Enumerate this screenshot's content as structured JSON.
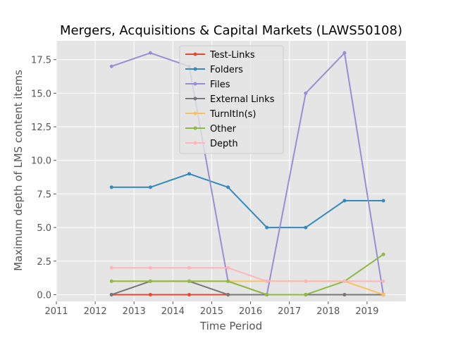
{
  "chart_data": {
    "type": "line",
    "title": "Mergers, Acquisitions & Capital Markets (LAWS50108)",
    "xlabel": "Time Period",
    "ylabel": "Maximum depth of LMS content items",
    "xlim": [
      2011,
      2020
    ],
    "ylim": [
      -0.5,
      18.9
    ],
    "x_ticks": [
      2011,
      2012,
      2013,
      2014,
      2015,
      2016,
      2017,
      2018,
      2019
    ],
    "y_ticks": [
      0.0,
      2.5,
      5.0,
      7.5,
      10.0,
      12.5,
      15.0,
      17.5
    ],
    "y_tick_labels": [
      "0.0",
      "2.5",
      "5.0",
      "7.5",
      "10.0",
      "12.5",
      "15.0",
      "17.5"
    ],
    "x_tick_labels": [
      "2011",
      "2012",
      "2013",
      "2014",
      "2015",
      "2016",
      "2017",
      "2018",
      "2019"
    ],
    "grid": true,
    "legend_position": "top-center",
    "x": [
      2012.42,
      2013.42,
      2014.42,
      2015.42,
      2016.42,
      2017.42,
      2018.42,
      2019.42
    ],
    "series": [
      {
        "name": "Test-Links",
        "color": "#E24A33",
        "values": [
          0,
          0,
          0,
          0,
          0,
          0,
          0,
          0
        ]
      },
      {
        "name": "Folders",
        "color": "#348ABD",
        "values": [
          8,
          8,
          9,
          8,
          5,
          5,
          7,
          7
        ]
      },
      {
        "name": "Files",
        "color": "#988ED5",
        "values": [
          17,
          18,
          17,
          1,
          0,
          15,
          18,
          0
        ]
      },
      {
        "name": "External Links",
        "color": "#777777",
        "values": [
          0,
          1,
          1,
          0,
          0,
          0,
          0,
          0
        ]
      },
      {
        "name": "TurnItIn(s)",
        "color": "#FBC15E",
        "values": [
          1,
          1,
          1,
          1,
          1,
          1,
          1,
          0
        ]
      },
      {
        "name": "Other",
        "color": "#8EBA42",
        "values": [
          1,
          1,
          1,
          1,
          0,
          0,
          1,
          3
        ]
      },
      {
        "name": "Depth",
        "color": "#FFB5B8",
        "values": [
          2,
          2,
          2,
          2,
          1,
          1,
          1,
          1
        ]
      }
    ]
  }
}
